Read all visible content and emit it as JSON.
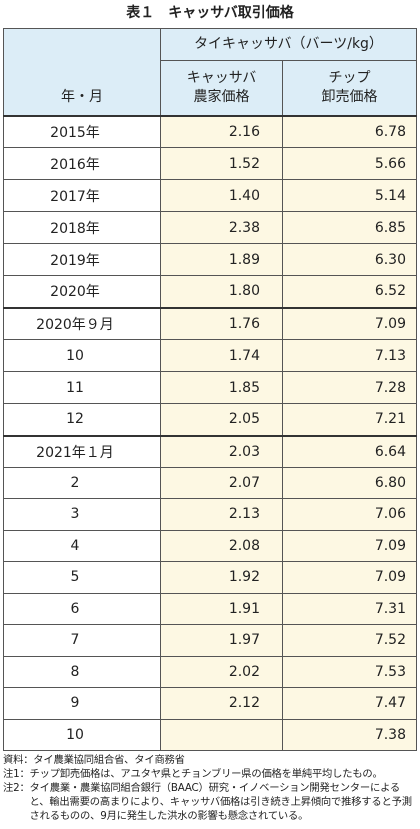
{
  "title": "表１　キャッサバ取引価格",
  "table": {
    "header": {
      "row_label": "年・月",
      "group": "タイキャッサバ（バーツ/kg）",
      "columns": [
        [
          "キャッサバ",
          "農家価格"
        ],
        [
          "チップ",
          "卸売価格"
        ]
      ]
    },
    "groups": [
      {
        "rows": [
          [
            "2015年",
            "2.16",
            "6.78"
          ],
          [
            "2016年",
            "1.52",
            "5.66"
          ],
          [
            "2017年",
            "1.40",
            "5.14"
          ],
          [
            "2018年",
            "2.38",
            "6.85"
          ],
          [
            "2019年",
            "1.89",
            "6.30"
          ],
          [
            "2020年",
            "1.80",
            "6.52"
          ]
        ]
      },
      {
        "rows": [
          [
            "2020年９月",
            "1.76",
            "7.09"
          ],
          [
            "10",
            "1.74",
            "7.13"
          ],
          [
            "11",
            "1.85",
            "7.28"
          ],
          [
            "12",
            "2.05",
            "7.21"
          ]
        ]
      },
      {
        "rows": [
          [
            "2021年１月",
            "2.03",
            "6.64"
          ],
          [
            "2",
            "2.07",
            "6.80"
          ],
          [
            "3",
            "2.13",
            "7.06"
          ],
          [
            "4",
            "2.08",
            "7.09"
          ],
          [
            "5",
            "1.92",
            "7.09"
          ],
          [
            "6",
            "1.91",
            "7.31"
          ],
          [
            "7",
            "1.97",
            "7.52"
          ],
          [
            "8",
            "2.02",
            "7.53"
          ],
          [
            "9",
            "2.12",
            "7.47"
          ],
          [
            "10",
            null,
            "7.38"
          ]
        ]
      }
    ]
  },
  "notes": [
    {
      "label": "資料：",
      "text": "タイ農業協同組合省、タイ商務省"
    },
    {
      "label": "注1：",
      "text": "チップ卸売価格は、アユタヤ県とチョンブリー県の価格を単純平均したもの。"
    },
    {
      "label": "注2：",
      "text": "タイ農業・農業協同組合銀行（BAAC）研究・イノベーション開発センターによると、輸出需要の高まりにより、キャッサバ価格は引き続き上昇傾向で推移すると予測されるものの、9月に発生した洪水の影響も懸念されている。"
    }
  ]
}
